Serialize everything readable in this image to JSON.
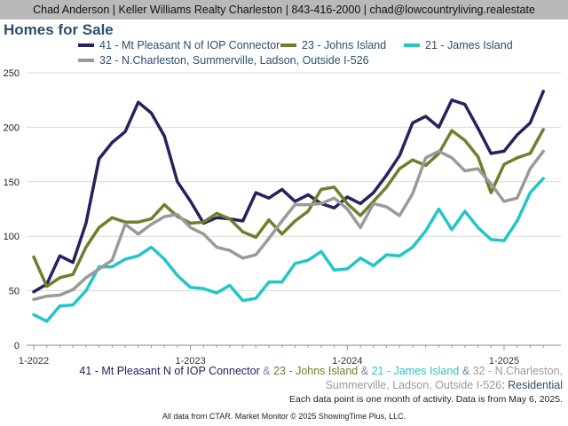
{
  "header": {
    "banner": "Chad Anderson | Keller Williams Realty Charleston | 843-416-2000 | chad@lowcountryliving.realestate"
  },
  "caption": {
    "series_labels": [
      "41 - Mt Pleasant N of IOP Connector",
      "23 - Johns Island",
      "21 - James Island",
      "32 - N.Charleston, Summerville, Ladson, Outside I-526"
    ],
    "separator": "&",
    "suffix": ": Residential",
    "note": "Each data point is one month of activity. Data is from May 6, 2025."
  },
  "footer": {
    "text": "All data from CTAR. Market Monitor © 2025 ShowingTime Plus, LLC."
  },
  "chart_data": {
    "type": "line",
    "title": "Homes for Sale",
    "xlabel": "",
    "ylabel": "",
    "ylim": [
      0,
      250
    ],
    "yticks": [
      0,
      50,
      100,
      150,
      200,
      250
    ],
    "x_tick_labels": [
      "1-2022",
      "1-2023",
      "1-2024",
      "1-2025"
    ],
    "x": [
      "2022-01",
      "2022-02",
      "2022-03",
      "2022-04",
      "2022-05",
      "2022-06",
      "2022-07",
      "2022-08",
      "2022-09",
      "2022-10",
      "2022-11",
      "2022-12",
      "2023-01",
      "2023-02",
      "2023-03",
      "2023-04",
      "2023-05",
      "2023-06",
      "2023-07",
      "2023-08",
      "2023-09",
      "2023-10",
      "2023-11",
      "2023-12",
      "2024-01",
      "2024-02",
      "2024-03",
      "2024-04",
      "2024-05",
      "2024-06",
      "2024-07",
      "2024-08",
      "2024-09",
      "2024-10",
      "2024-11",
      "2024-12",
      "2025-01",
      "2025-02",
      "2025-03",
      "2025-04"
    ],
    "grid": true,
    "legend_position": "top",
    "series": [
      {
        "name": "41 - Mt Pleasant N of IOP Connector",
        "color": "#24235f",
        "values": [
          49,
          56,
          82,
          76,
          112,
          171,
          186,
          196,
          223,
          213,
          192,
          150,
          132,
          112,
          117,
          116,
          114,
          140,
          135,
          143,
          132,
          138,
          130,
          126,
          136,
          130,
          140,
          156,
          174,
          204,
          210,
          200,
          225,
          221,
          199,
          176,
          178,
          193,
          204,
          233
        ]
      },
      {
        "name": "23 - Johns Island",
        "color": "#6b812b",
        "values": [
          81,
          54,
          62,
          65,
          90,
          108,
          117,
          113,
          113,
          116,
          129,
          118,
          112,
          113,
          121,
          116,
          104,
          99,
          115,
          102,
          114,
          123,
          143,
          145,
          130,
          119,
          132,
          145,
          162,
          170,
          165,
          176,
          197,
          188,
          173,
          140,
          166,
          172,
          176,
          198
        ]
      },
      {
        "name": "21 - James Island",
        "color": "#23c6c8",
        "values": [
          28,
          22,
          36,
          37,
          50,
          72,
          72,
          79,
          82,
          90,
          79,
          64,
          53,
          52,
          48,
          55,
          41,
          43,
          58,
          58,
          75,
          78,
          86,
          69,
          70,
          80,
          73,
          83,
          82,
          90,
          105,
          125,
          106,
          123,
          108,
          97,
          96,
          114,
          140,
          153
        ]
      },
      {
        "name": "32 - N.Charleston, Summerville, Ladson, Outside I-526",
        "color": "#9a9a9a",
        "values": [
          42,
          45,
          46,
          51,
          62,
          70,
          78,
          111,
          102,
          111,
          118,
          120,
          108,
          102,
          90,
          87,
          80,
          83,
          98,
          114,
          129,
          129,
          130,
          135,
          125,
          108,
          130,
          127,
          119,
          139,
          172,
          178,
          172,
          160,
          162,
          148,
          132,
          135,
          162,
          178
        ]
      }
    ]
  }
}
